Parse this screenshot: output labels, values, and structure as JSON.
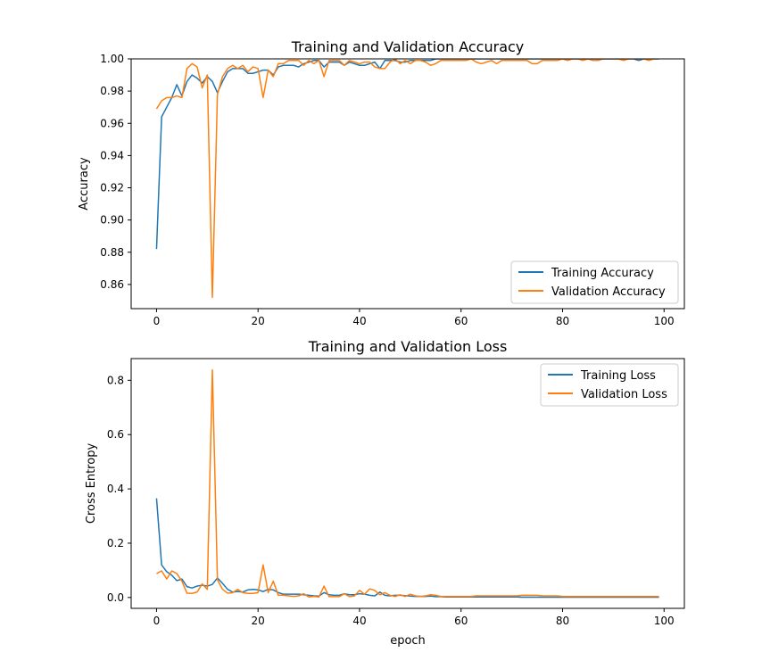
{
  "chart_data": [
    {
      "type": "line",
      "title": "Training and Validation Accuracy",
      "xlabel": "",
      "ylabel": "Accuracy",
      "xlim": [
        -5,
        104
      ],
      "ylim": [
        0.845,
        1.0
      ],
      "xticks": [
        0,
        20,
        40,
        60,
        80,
        100
      ],
      "xtick_labels": [
        "0",
        "20",
        "40",
        "60",
        "80",
        "100"
      ],
      "yticks": [
        0.86,
        0.88,
        0.9,
        0.92,
        0.94,
        0.96,
        0.98,
        1.0
      ],
      "ytick_labels": [
        "0.86",
        "0.88",
        "0.90",
        "0.92",
        "0.94",
        "0.96",
        "0.98",
        "1.00"
      ],
      "grid": false,
      "legend_position": "lower right",
      "series": [
        {
          "name": "Training Accuracy",
          "color": "#1f77b4",
          "x": [
            0,
            1,
            2,
            3,
            4,
            5,
            6,
            7,
            8,
            9,
            10,
            11,
            12,
            13,
            14,
            15,
            16,
            17,
            18,
            19,
            20,
            21,
            22,
            23,
            24,
            25,
            26,
            27,
            28,
            29,
            30,
            31,
            32,
            33,
            34,
            35,
            36,
            37,
            38,
            39,
            40,
            41,
            42,
            43,
            44,
            45,
            46,
            47,
            48,
            49,
            50,
            51,
            52,
            53,
            54,
            55,
            56,
            57,
            58,
            59,
            60,
            61,
            62,
            63,
            64,
            65,
            66,
            67,
            68,
            69,
            70,
            71,
            72,
            73,
            74,
            75,
            76,
            77,
            78,
            79,
            80,
            81,
            82,
            83,
            84,
            85,
            86,
            87,
            88,
            89,
            90,
            91,
            92,
            93,
            94,
            95,
            96,
            97,
            98,
            99
          ],
          "y": [
            0.882,
            0.964,
            0.97,
            0.976,
            0.984,
            0.977,
            0.986,
            0.99,
            0.988,
            0.985,
            0.989,
            0.986,
            0.979,
            0.986,
            0.992,
            0.994,
            0.994,
            0.994,
            0.991,
            0.991,
            0.992,
            0.993,
            0.993,
            0.99,
            0.995,
            0.996,
            0.996,
            0.996,
            0.995,
            0.997,
            0.998,
            0.999,
            0.999,
            0.995,
            0.998,
            0.998,
            0.998,
            0.996,
            0.998,
            0.997,
            0.996,
            0.996,
            0.997,
            0.998,
            0.994,
            0.999,
            0.999,
            0.999,
            0.998,
            0.998,
            0.999,
            0.999,
            0.999,
            0.999,
            0.999,
            1.0,
            1.0,
            1.0,
            1.0,
            1.0,
            1.0,
            1.0,
            1.0,
            1.0,
            1.0,
            1.0,
            1.0,
            1.0,
            1.0,
            1.0,
            1.0,
            1.0,
            1.0,
            1.0,
            1.0,
            1.0,
            1.0,
            1.0,
            1.0,
            1.0,
            1.0,
            1.0,
            1.0,
            1.0,
            1.0,
            1.0,
            1.0,
            1.0,
            1.0,
            1.0,
            1.0,
            1.0,
            1.0,
            1.0,
            1.0,
            0.999,
            1.0,
            1.0,
            1.0,
            1.0
          ]
        },
        {
          "name": "Validation Accuracy",
          "color": "#ff7f0e",
          "x": [
            0,
            1,
            2,
            3,
            4,
            5,
            6,
            7,
            8,
            9,
            10,
            11,
            12,
            13,
            14,
            15,
            16,
            17,
            18,
            19,
            20,
            21,
            22,
            23,
            24,
            25,
            26,
            27,
            28,
            29,
            30,
            31,
            32,
            33,
            34,
            35,
            36,
            37,
            38,
            39,
            40,
            41,
            42,
            43,
            44,
            45,
            46,
            47,
            48,
            49,
            50,
            51,
            52,
            53,
            54,
            55,
            56,
            57,
            58,
            59,
            60,
            61,
            62,
            63,
            64,
            65,
            66,
            67,
            68,
            69,
            70,
            71,
            72,
            73,
            74,
            75,
            76,
            77,
            78,
            79,
            80,
            81,
            82,
            83,
            84,
            85,
            86,
            87,
            88,
            89,
            90,
            91,
            92,
            93,
            94,
            95,
            96,
            97,
            98,
            99
          ],
          "y": [
            0.969,
            0.974,
            0.976,
            0.976,
            0.977,
            0.976,
            0.994,
            0.997,
            0.995,
            0.982,
            0.99,
            0.852,
            0.978,
            0.989,
            0.994,
            0.996,
            0.994,
            0.996,
            0.992,
            0.995,
            0.994,
            0.976,
            0.993,
            0.989,
            0.997,
            0.997,
            0.999,
            0.999,
            0.999,
            0.996,
            0.999,
            0.997,
            0.999,
            0.989,
            0.999,
            0.999,
            0.999,
            0.996,
            0.999,
            0.998,
            0.997,
            0.998,
            0.998,
            0.995,
            0.994,
            0.994,
            0.998,
            1.0,
            0.997,
            0.999,
            0.997,
            0.999,
            0.999,
            0.998,
            0.996,
            0.997,
            0.999,
            0.999,
            0.999,
            0.999,
            0.999,
            0.999,
            1.0,
            0.998,
            0.997,
            0.998,
            0.999,
            0.997,
            0.999,
            0.999,
            0.999,
            0.999,
            0.999,
            0.999,
            0.997,
            0.997,
            0.999,
            0.999,
            0.999,
            0.999,
            1.0,
            0.999,
            1.0,
            1.0,
            0.999,
            1.0,
            0.999,
            0.999,
            1.0,
            1.0,
            1.0,
            1.0,
            0.999,
            1.0,
            1.0,
            1.0,
            1.0,
            0.999,
            1.0,
            1.0
          ]
        }
      ]
    },
    {
      "type": "line",
      "title": "Training and Validation Loss",
      "xlabel": "epoch",
      "ylabel": "Cross Entropy",
      "xlim": [
        -5,
        104
      ],
      "ylim": [
        -0.04,
        0.88
      ],
      "xticks": [
        0,
        20,
        40,
        60,
        80,
        100
      ],
      "xtick_labels": [
        "0",
        "20",
        "40",
        "60",
        "80",
        "100"
      ],
      "yticks": [
        0.0,
        0.2,
        0.4,
        0.6,
        0.8
      ],
      "ytick_labels": [
        "0.0",
        "0.2",
        "0.4",
        "0.6",
        "0.8"
      ],
      "grid": false,
      "legend_position": "upper right",
      "series": [
        {
          "name": "Training Loss",
          "color": "#1f77b4",
          "x": [
            0,
            1,
            2,
            3,
            4,
            5,
            6,
            7,
            8,
            9,
            10,
            11,
            12,
            13,
            14,
            15,
            16,
            17,
            18,
            19,
            20,
            21,
            22,
            23,
            24,
            25,
            26,
            27,
            28,
            29,
            30,
            31,
            32,
            33,
            34,
            35,
            36,
            37,
            38,
            39,
            40,
            41,
            42,
            43,
            44,
            45,
            46,
            47,
            48,
            49,
            50,
            51,
            52,
            53,
            54,
            55,
            56,
            57,
            58,
            59,
            60,
            61,
            62,
            63,
            64,
            65,
            66,
            67,
            68,
            69,
            70,
            71,
            72,
            73,
            74,
            75,
            76,
            77,
            78,
            79,
            80,
            81,
            82,
            83,
            84,
            85,
            86,
            87,
            88,
            89,
            90,
            91,
            92,
            93,
            94,
            95,
            96,
            97,
            98,
            99
          ],
          "y": [
            0.365,
            0.12,
            0.095,
            0.082,
            0.062,
            0.068,
            0.04,
            0.035,
            0.042,
            0.045,
            0.042,
            0.048,
            0.072,
            0.052,
            0.03,
            0.02,
            0.022,
            0.02,
            0.028,
            0.03,
            0.028,
            0.022,
            0.03,
            0.028,
            0.018,
            0.012,
            0.012,
            0.012,
            0.012,
            0.01,
            0.008,
            0.006,
            0.005,
            0.018,
            0.01,
            0.008,
            0.008,
            0.014,
            0.01,
            0.01,
            0.014,
            0.012,
            0.008,
            0.006,
            0.02,
            0.008,
            0.006,
            0.008,
            0.008,
            0.007,
            0.005,
            0.004,
            0.004,
            0.004,
            0.005,
            0.003,
            0.003,
            0.002,
            0.002,
            0.002,
            0.002,
            0.002,
            0.002,
            0.002,
            0.002,
            0.002,
            0.002,
            0.002,
            0.002,
            0.002,
            0.002,
            0.002,
            0.001,
            0.001,
            0.001,
            0.001,
            0.001,
            0.001,
            0.001,
            0.001,
            0.001,
            0.001,
            0.001,
            0.001,
            0.001,
            0.001,
            0.001,
            0.001,
            0.001,
            0.001,
            0.001,
            0.001,
            0.001,
            0.001,
            0.001,
            0.001,
            0.001,
            0.001,
            0.001,
            0.001
          ]
        },
        {
          "name": "Validation Loss",
          "color": "#ff7f0e",
          "x": [
            0,
            1,
            2,
            3,
            4,
            5,
            6,
            7,
            8,
            9,
            10,
            11,
            12,
            13,
            14,
            15,
            16,
            17,
            18,
            19,
            20,
            21,
            22,
            23,
            24,
            25,
            26,
            27,
            28,
            29,
            30,
            31,
            32,
            33,
            34,
            35,
            36,
            37,
            38,
            39,
            40,
            41,
            42,
            43,
            44,
            45,
            46,
            47,
            48,
            49,
            50,
            51,
            52,
            53,
            54,
            55,
            56,
            57,
            58,
            59,
            60,
            61,
            62,
            63,
            64,
            65,
            66,
            67,
            68,
            69,
            70,
            71,
            72,
            73,
            74,
            75,
            76,
            77,
            78,
            79,
            80,
            81,
            82,
            83,
            84,
            85,
            86,
            87,
            88,
            89,
            90,
            91,
            92,
            93,
            94,
            95,
            96,
            97,
            98,
            99
          ],
          "y": [
            0.088,
            0.098,
            0.068,
            0.098,
            0.088,
            0.06,
            0.016,
            0.015,
            0.02,
            0.05,
            0.03,
            0.838,
            0.065,
            0.03,
            0.016,
            0.018,
            0.03,
            0.018,
            0.015,
            0.015,
            0.018,
            0.12,
            0.018,
            0.06,
            0.008,
            0.008,
            0.006,
            0.004,
            0.006,
            0.014,
            0.002,
            0.004,
            0.002,
            0.042,
            0.003,
            0.003,
            0.003,
            0.014,
            0.003,
            0.006,
            0.026,
            0.012,
            0.032,
            0.026,
            0.01,
            0.018,
            0.008,
            0.004,
            0.01,
            0.004,
            0.012,
            0.006,
            0.004,
            0.006,
            0.01,
            0.008,
            0.004,
            0.004,
            0.004,
            0.004,
            0.004,
            0.004,
            0.004,
            0.006,
            0.006,
            0.006,
            0.006,
            0.006,
            0.006,
            0.006,
            0.006,
            0.006,
            0.008,
            0.008,
            0.008,
            0.008,
            0.006,
            0.006,
            0.006,
            0.006,
            0.004,
            0.004,
            0.004,
            0.004,
            0.004,
            0.004,
            0.004,
            0.004,
            0.004,
            0.004,
            0.004,
            0.004,
            0.004,
            0.004,
            0.004,
            0.004,
            0.004,
            0.004,
            0.004,
            0.004
          ]
        }
      ]
    }
  ]
}
